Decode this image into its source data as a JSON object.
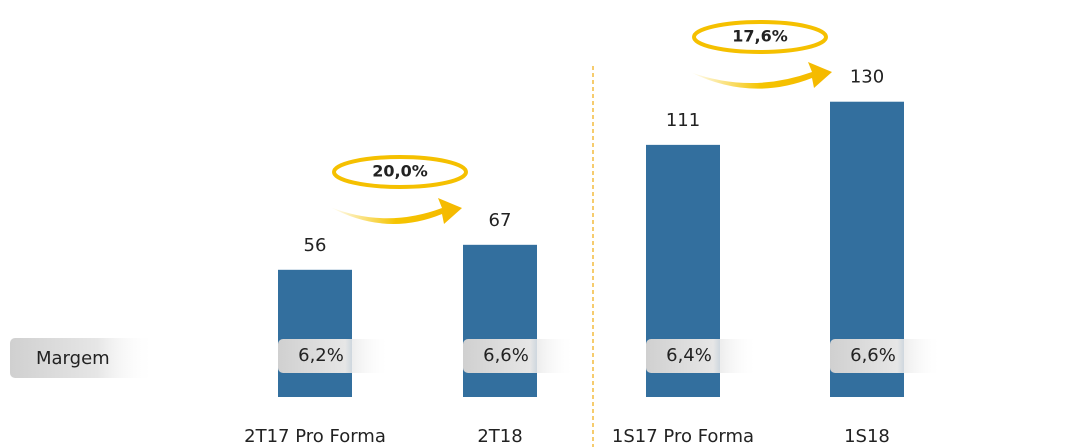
{
  "chart_data": {
    "type": "bar",
    "categories": [
      "2T17 Pro Forma",
      "2T18",
      "1S17 Pro Forma",
      "1S18"
    ],
    "values": [
      56,
      67,
      111,
      130
    ],
    "color": "#336f9e",
    "ylim": [
      0,
      140
    ],
    "margin_label": "Margem",
    "margins": [
      6.2,
      6.6,
      6.4,
      6.6
    ],
    "margin_labels": [
      "6,2%",
      "6,6%",
      "6,4%",
      "6,6%"
    ],
    "growth": [
      20.0,
      17.6
    ],
    "growth_labels": [
      "20,0%",
      "17,6%"
    ]
  }
}
